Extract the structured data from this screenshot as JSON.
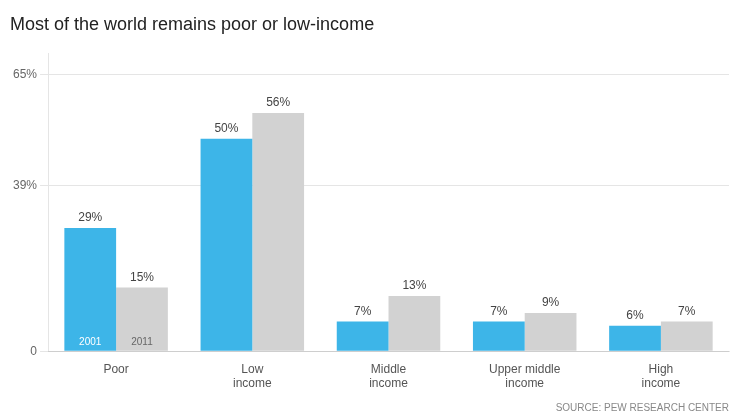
{
  "chart_data": {
    "type": "bar",
    "title": "Most of the world remains poor or low-income",
    "categories": [
      "Poor",
      "Low\nincome",
      "Middle\nincome",
      "Upper middle\nincome",
      "High\nincome"
    ],
    "series": [
      {
        "name": "2001",
        "color": "#3db5e8",
        "values": [
          29,
          50,
          7,
          7,
          6
        ],
        "value_labels": [
          "29%",
          "50%",
          "7%",
          "7%",
          "6%"
        ]
      },
      {
        "name": "2011",
        "color": "#d2d2d2",
        "values": [
          15,
          56,
          13,
          9,
          7
        ],
        "value_labels": [
          "15%",
          "56%",
          "13%",
          "9%",
          "7%"
        ]
      }
    ],
    "ylim": [
      0,
      70
    ],
    "yticks": [
      0,
      {
        "value": 39,
        "label": "39%"
      },
      {
        "value": 65,
        "label": "65%"
      }
    ],
    "grid": true,
    "data_labels": true,
    "annotations": [
      "SOURCE: PEW RESEARCH CENTER"
    ]
  }
}
